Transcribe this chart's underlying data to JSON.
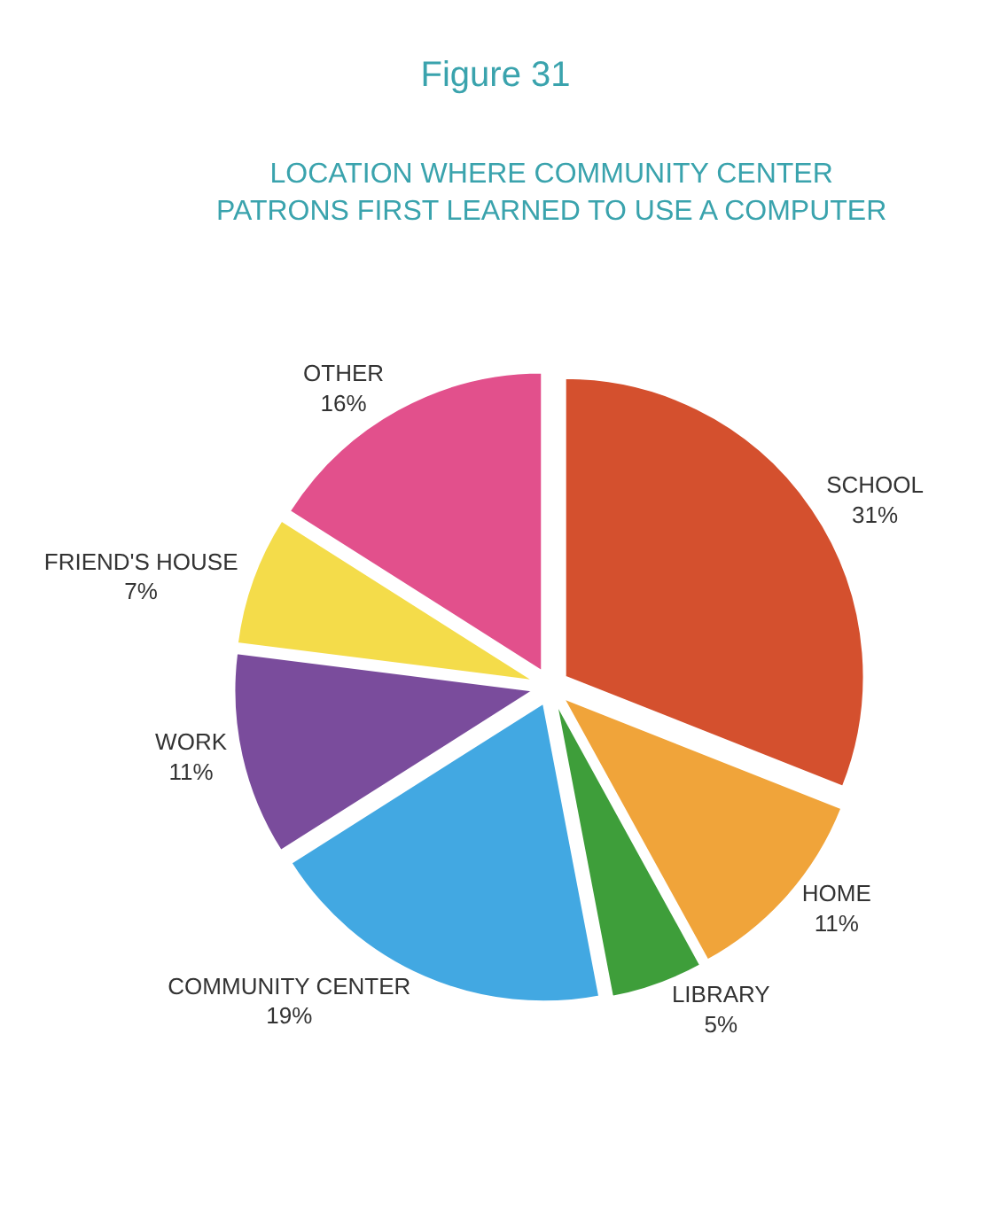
{
  "chart_data": {
    "type": "pie",
    "title": "Figure 31",
    "subtitle": "LOCATION WHERE COMMUNITY CENTER PATRONS FIRST LEARNED TO USE A COMPUTER",
    "categories": [
      "SCHOOL",
      "HOME",
      "LIBRARY",
      "COMMUNITY CENTER",
      "WORK",
      "FRIEND'S HOUSE",
      "OTHER"
    ],
    "values": [
      31,
      11,
      5,
      19,
      11,
      7,
      16
    ],
    "value_labels": [
      "31%",
      "11%",
      "5%",
      "19%",
      "11%",
      "7%",
      "16%"
    ],
    "colors": [
      "#d4502e",
      "#f0a43a",
      "#3e9e3a",
      "#42a8e2",
      "#7a4c9c",
      "#f4dc4a",
      "#e2508c"
    ],
    "legend": false
  }
}
